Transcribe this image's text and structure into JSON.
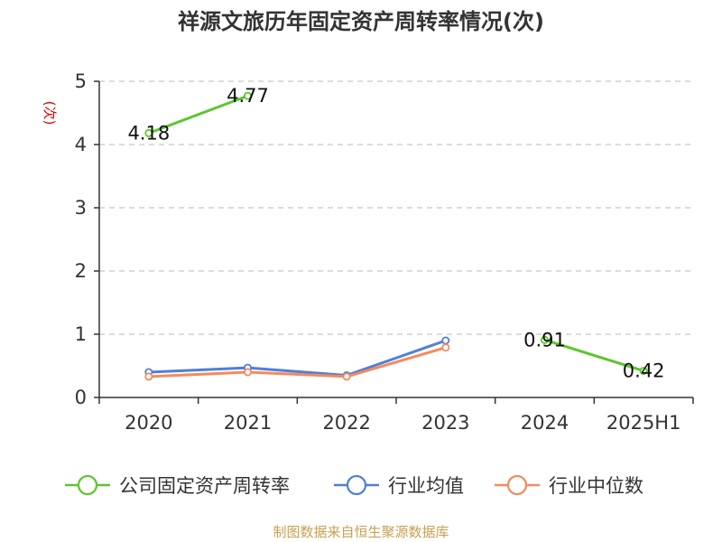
{
  "chart_data": {
    "type": "line",
    "title": "祥源文旅历年固定资产周转率情况(次)",
    "ylabel": "(次)",
    "categories": [
      "2020",
      "2021",
      "2022",
      "2023",
      "2024",
      "2025H1"
    ],
    "ylim": [
      0,
      5
    ],
    "yticks": [
      "0",
      "1",
      "2",
      "3",
      "4",
      "5"
    ],
    "grid": true,
    "legend_position": "bottom",
    "series": [
      {
        "name": "公司固定资产周转率",
        "color": "#5cc62c",
        "values": [
          4.18,
          4.77,
          null,
          null,
          0.91,
          0.42
        ],
        "labels": [
          "4.18",
          "4.77",
          "",
          "",
          "0.91",
          "0.42"
        ]
      },
      {
        "name": "行业均值",
        "color": "#4f7fd8",
        "values": [
          0.4,
          0.47,
          0.35,
          0.9,
          null,
          null
        ],
        "labels": [
          "",
          "",
          "",
          "",
          "",
          ""
        ]
      },
      {
        "name": "行业中位数",
        "color": "#f58a5d",
        "values": [
          0.33,
          0.4,
          0.33,
          0.79,
          null,
          null
        ],
        "labels": [
          "",
          "",
          "",
          "",
          "",
          ""
        ]
      }
    ],
    "source": "制图数据来自恒生聚源数据库"
  }
}
